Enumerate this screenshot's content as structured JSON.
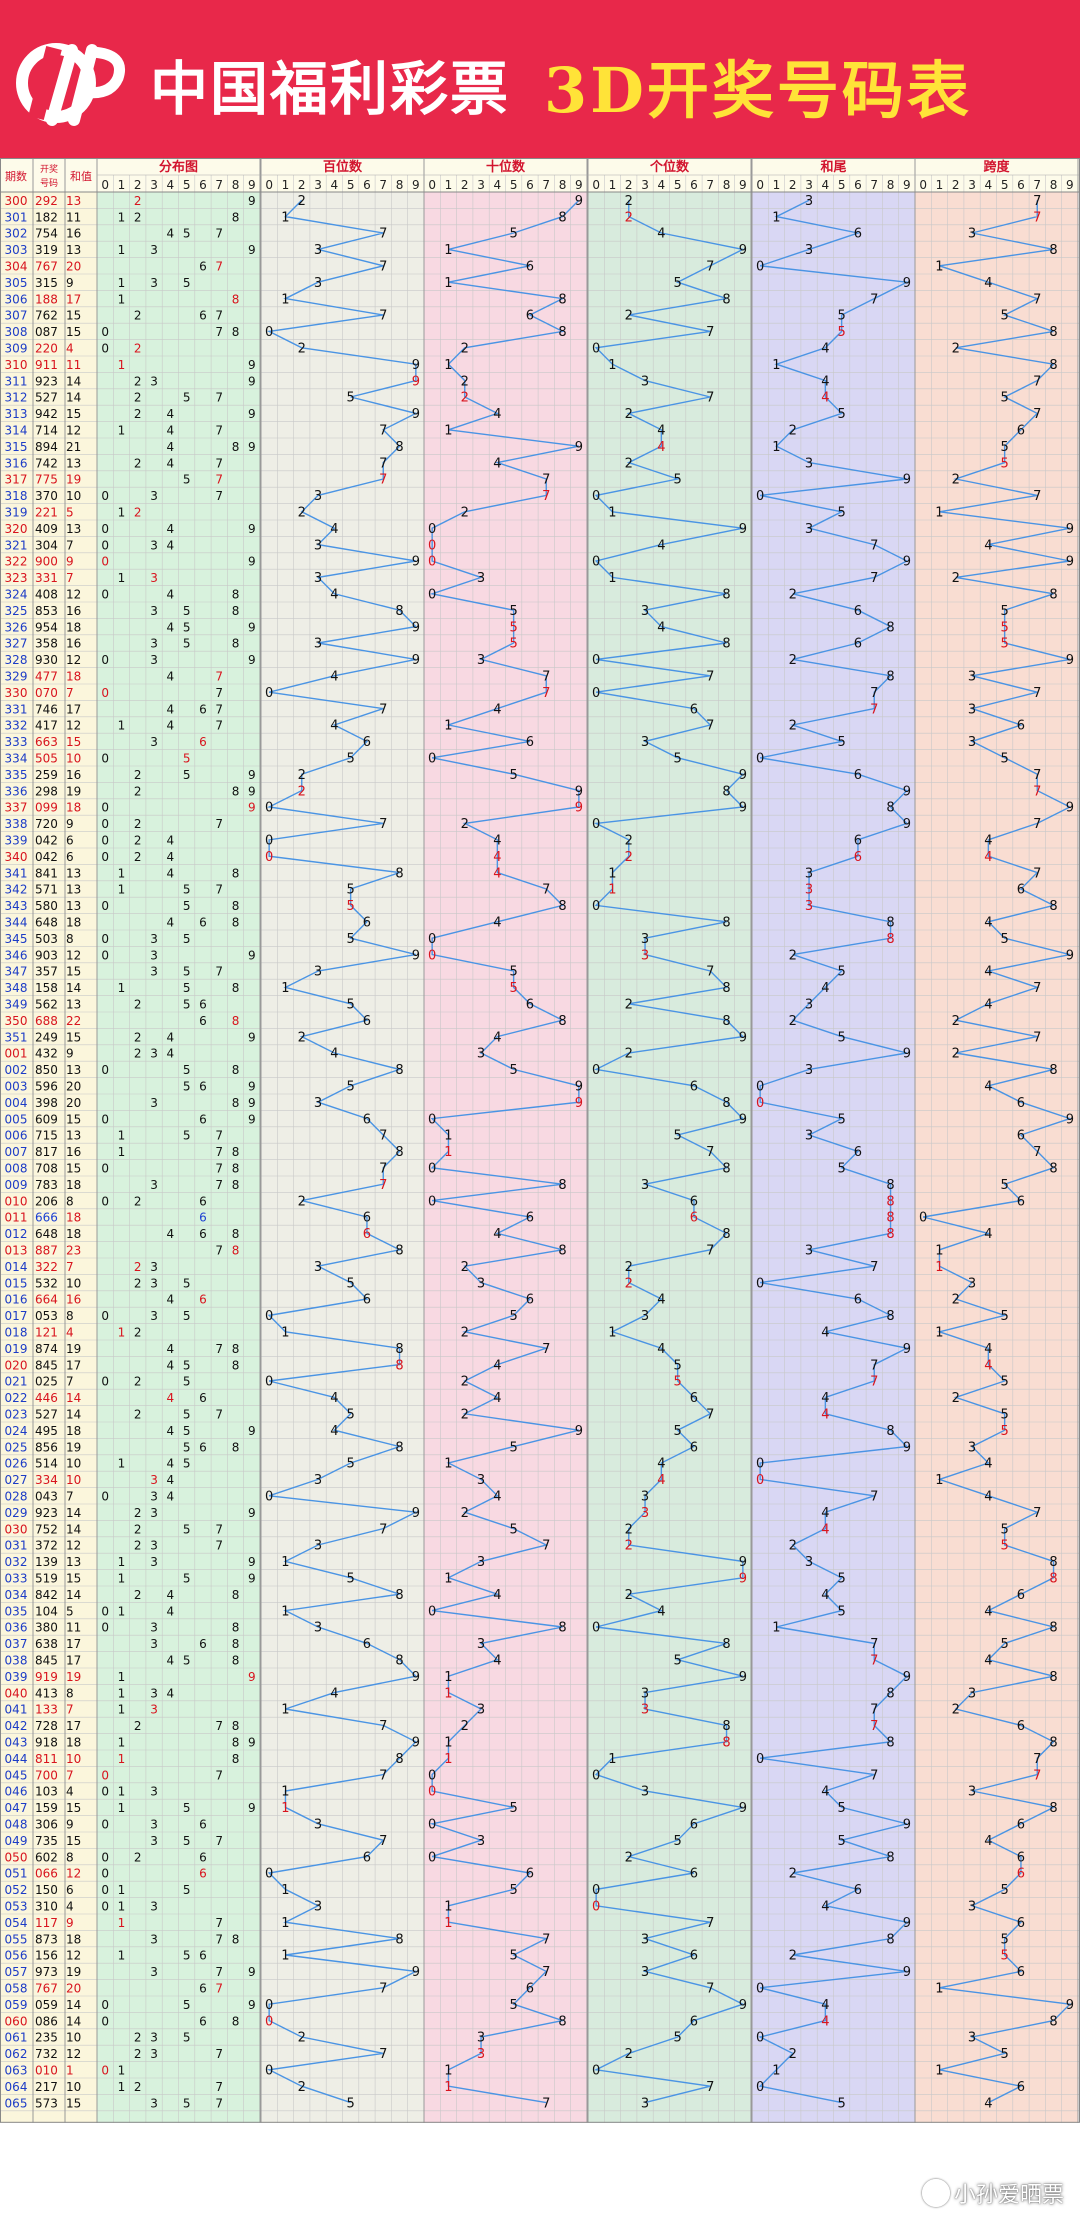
{
  "header": {
    "brand": "中国福利彩票",
    "title": "3D开奖号码表",
    "accent": "#e8284a",
    "title_color": "#ffe338"
  },
  "watermark": "小孙爱晒票",
  "chart_data": {
    "type": "table",
    "col_headers": {
      "period": "期数",
      "number": "开奖号码",
      "sum": "和值",
      "sections": [
        "分布图",
        "百位数",
        "十位数",
        "个位数",
        "和尾",
        "跨度"
      ]
    },
    "digits": [
      "0",
      "1",
      "2",
      "3",
      "4",
      "5",
      "6",
      "7",
      "8",
      "9"
    ],
    "rows": [
      [
        "300",
        "292",
        13
      ],
      [
        "301",
        "182",
        11
      ],
      [
        "302",
        "754",
        16
      ],
      [
        "303",
        "319",
        13
      ],
      [
        "304",
        "767",
        20
      ],
      [
        "305",
        "315",
        9
      ],
      [
        "306",
        "188",
        17
      ],
      [
        "307",
        "762",
        15
      ],
      [
        "308",
        "087",
        15
      ],
      [
        "309",
        "220",
        4
      ],
      [
        "310",
        "911",
        11
      ],
      [
        "311",
        "923",
        14
      ],
      [
        "312",
        "527",
        14
      ],
      [
        "313",
        "942",
        15
      ],
      [
        "314",
        "714",
        12
      ],
      [
        "315",
        "894",
        21
      ],
      [
        "316",
        "742",
        13
      ],
      [
        "317",
        "775",
        19
      ],
      [
        "318",
        "370",
        10
      ],
      [
        "319",
        "221",
        5
      ],
      [
        "320",
        "409",
        13
      ],
      [
        "321",
        "304",
        7
      ],
      [
        "322",
        "900",
        9
      ],
      [
        "323",
        "331",
        7
      ],
      [
        "324",
        "408",
        12
      ],
      [
        "325",
        "853",
        16
      ],
      [
        "326",
        "954",
        18
      ],
      [
        "327",
        "358",
        16
      ],
      [
        "328",
        "930",
        12
      ],
      [
        "329",
        "477",
        18
      ],
      [
        "330",
        "070",
        7
      ],
      [
        "331",
        "746",
        17
      ],
      [
        "332",
        "417",
        12
      ],
      [
        "333",
        "663",
        15
      ],
      [
        "334",
        "505",
        10
      ],
      [
        "335",
        "259",
        16
      ],
      [
        "336",
        "298",
        19
      ],
      [
        "337",
        "099",
        18
      ],
      [
        "338",
        "720",
        9
      ],
      [
        "339",
        "042",
        6
      ],
      [
        "340",
        "042",
        6
      ],
      [
        "341",
        "841",
        13
      ],
      [
        "342",
        "571",
        13
      ],
      [
        "343",
        "580",
        13
      ],
      [
        "344",
        "648",
        18
      ],
      [
        "345",
        "503",
        8
      ],
      [
        "346",
        "903",
        12
      ],
      [
        "347",
        "357",
        15
      ],
      [
        "348",
        "158",
        14
      ],
      [
        "349",
        "562",
        13
      ],
      [
        "350",
        "688",
        22
      ],
      [
        "351",
        "249",
        15
      ],
      [
        "001",
        "432",
        9
      ],
      [
        "002",
        "850",
        13
      ],
      [
        "003",
        "596",
        20
      ],
      [
        "004",
        "398",
        20
      ],
      [
        "005",
        "609",
        15
      ],
      [
        "006",
        "715",
        13
      ],
      [
        "007",
        "817",
        16
      ],
      [
        "008",
        "708",
        15
      ],
      [
        "009",
        "783",
        18
      ],
      [
        "010",
        "206",
        8
      ],
      [
        "011",
        "666",
        18
      ],
      [
        "012",
        "648",
        18
      ],
      [
        "013",
        "887",
        23
      ],
      [
        "014",
        "322",
        7
      ],
      [
        "015",
        "532",
        10
      ],
      [
        "016",
        "664",
        16
      ],
      [
        "017",
        "053",
        8
      ],
      [
        "018",
        "121",
        4
      ],
      [
        "019",
        "874",
        19
      ],
      [
        "020",
        "845",
        17
      ],
      [
        "021",
        "025",
        7
      ],
      [
        "022",
        "446",
        14
      ],
      [
        "023",
        "527",
        14
      ],
      [
        "024",
        "495",
        18
      ],
      [
        "025",
        "856",
        19
      ],
      [
        "026",
        "514",
        10
      ],
      [
        "027",
        "334",
        10
      ],
      [
        "028",
        "043",
        7
      ],
      [
        "029",
        "923",
        14
      ],
      [
        "030",
        "752",
        14
      ],
      [
        "031",
        "372",
        12
      ],
      [
        "032",
        "139",
        13
      ],
      [
        "033",
        "519",
        15
      ],
      [
        "034",
        "842",
        14
      ],
      [
        "035",
        "104",
        5
      ],
      [
        "036",
        "380",
        11
      ],
      [
        "037",
        "638",
        17
      ],
      [
        "038",
        "845",
        17
      ],
      [
        "039",
        "919",
        19
      ],
      [
        "040",
        "413",
        8
      ],
      [
        "041",
        "133",
        7
      ],
      [
        "042",
        "728",
        17
      ],
      [
        "043",
        "918",
        18
      ],
      [
        "044",
        "811",
        10
      ],
      [
        "045",
        "700",
        7
      ],
      [
        "046",
        "103",
        4
      ],
      [
        "047",
        "159",
        15
      ],
      [
        "048",
        "306",
        9
      ],
      [
        "049",
        "735",
        15
      ],
      [
        "050",
        "602",
        8
      ],
      [
        "051",
        "066",
        12
      ],
      [
        "052",
        "150",
        6
      ],
      [
        "053",
        "310",
        4
      ],
      [
        "054",
        "117",
        9
      ],
      [
        "055",
        "873",
        18
      ],
      [
        "056",
        "156",
        12
      ],
      [
        "057",
        "973",
        19
      ],
      [
        "058",
        "767",
        20
      ],
      [
        "059",
        "059",
        14
      ],
      [
        "060",
        "086",
        14
      ],
      [
        "061",
        "235",
        10
      ],
      [
        "062",
        "732",
        12
      ],
      [
        "063",
        "010",
        1
      ],
      [
        "064",
        "217",
        10
      ],
      [
        "065",
        "573",
        15
      ]
    ]
  }
}
